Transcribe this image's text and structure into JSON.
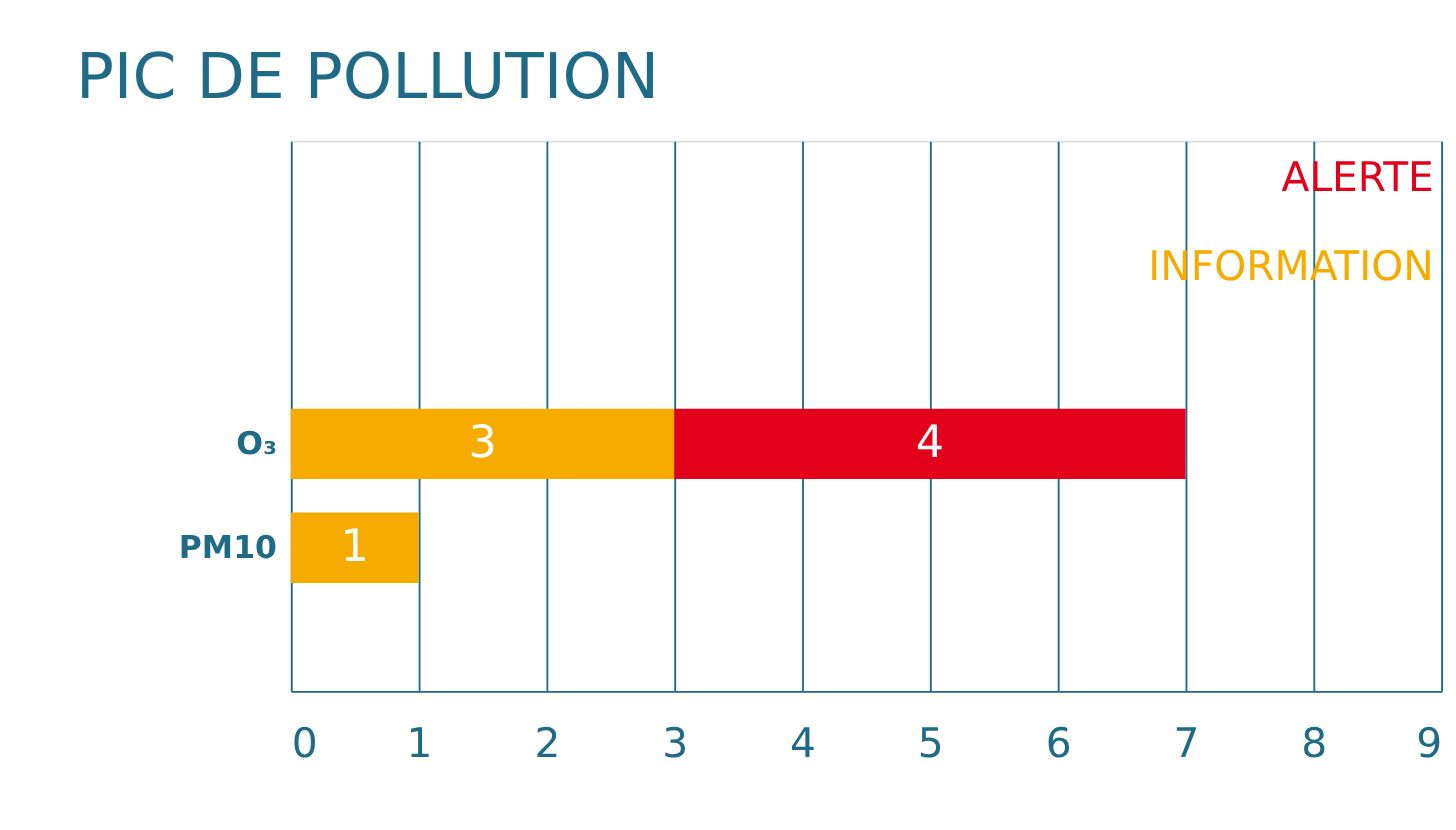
{
  "chart_data": {
    "type": "bar",
    "title": "PIC DE POLLUTION",
    "orientation": "horizontal",
    "stacked": true,
    "categories": [
      "O₃",
      "PM10"
    ],
    "series": [
      {
        "name": "INFORMATION",
        "color": "#f5ab00",
        "values": [
          3,
          1
        ]
      },
      {
        "name": "ALERTE",
        "color": "#e2001a",
        "values": [
          4,
          null
        ]
      }
    ],
    "xlim": [
      0,
      9
    ],
    "xticks": [
      0,
      1,
      2,
      3,
      4,
      5,
      6,
      7,
      8,
      9
    ],
    "grid": "x",
    "legend": "top right",
    "data_labels": true
  }
}
